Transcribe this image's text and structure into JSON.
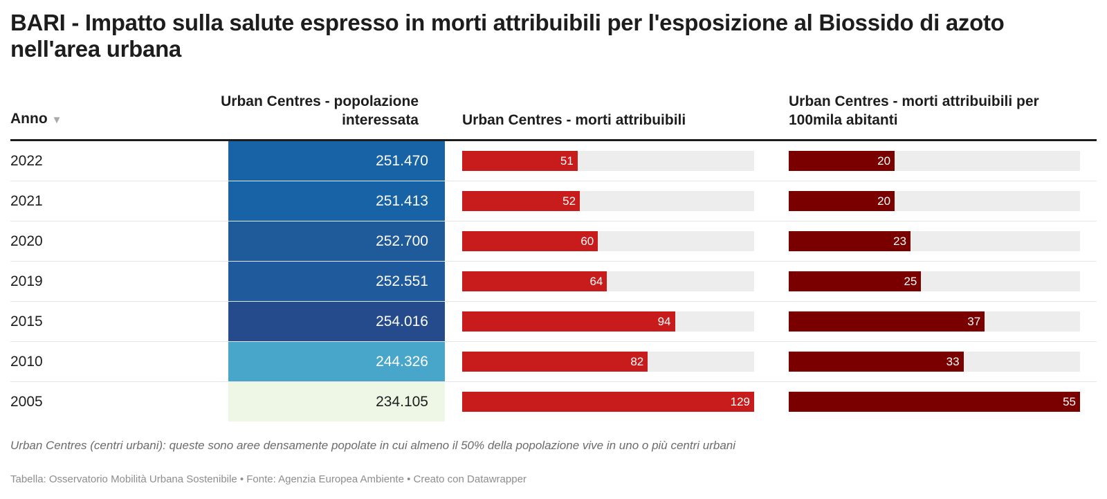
{
  "title": "BARI - Impatto sulla salute espresso in morti attribuibili per l'esposizione al Biossido di azoto nell'area urbana",
  "headers": {
    "anno": "Anno",
    "sort_icon": "▼",
    "pop": "Urban Centres - popolazione interessata",
    "deaths": "Urban Centres - morti attribuibili",
    "rate": "Urban Centres - morti attribuibili per 100mila abitanti"
  },
  "colors": {
    "deaths_bar": "#c81c1c",
    "rate_bar": "#7a0000",
    "track": "#ededed"
  },
  "chart_data": {
    "type": "table",
    "columns": [
      "Anno",
      "Urban Centres - popolazione interessata",
      "Urban Centres - morti attribuibili",
      "Urban Centres - morti attribuibili per 100mila abitanti"
    ],
    "deaths_max": 129,
    "rate_max": 55,
    "rows": [
      {
        "year": "2022",
        "pop": "251.470",
        "pop_color": "#1763a5",
        "pop_text_color": "#ffffff",
        "deaths": 51,
        "rate": 20
      },
      {
        "year": "2021",
        "pop": "251.413",
        "pop_color": "#1763a5",
        "pop_text_color": "#ffffff",
        "deaths": 52,
        "rate": 20
      },
      {
        "year": "2020",
        "pop": "252.700",
        "pop_color": "#1f5a9b",
        "pop_text_color": "#ffffff",
        "deaths": 60,
        "rate": 23
      },
      {
        "year": "2019",
        "pop": "252.551",
        "pop_color": "#1f5b9c",
        "pop_text_color": "#ffffff",
        "deaths": 64,
        "rate": 25
      },
      {
        "year": "2015",
        "pop": "254.016",
        "pop_color": "#254b8c",
        "pop_text_color": "#ffffff",
        "deaths": 94,
        "rate": 37
      },
      {
        "year": "2010",
        "pop": "244.326",
        "pop_color": "#47a6c9",
        "pop_text_color": "#ffffff",
        "deaths": 82,
        "rate": 33
      },
      {
        "year": "2005",
        "pop": "234.105",
        "pop_color": "#eef7e6",
        "pop_text_color": "#1d1d1d",
        "deaths": 129,
        "rate": 55
      }
    ]
  },
  "note": "Urban Centres (centri urbani): queste sono aree densamente popolate in cui almeno il 50% della popolazione vive in uno o più centri urbani",
  "source": "Tabella: Osservatorio Mobilità Urbana Sostenibile • Fonte: Agenzia Europea Ambiente • Creato con Datawrapper"
}
